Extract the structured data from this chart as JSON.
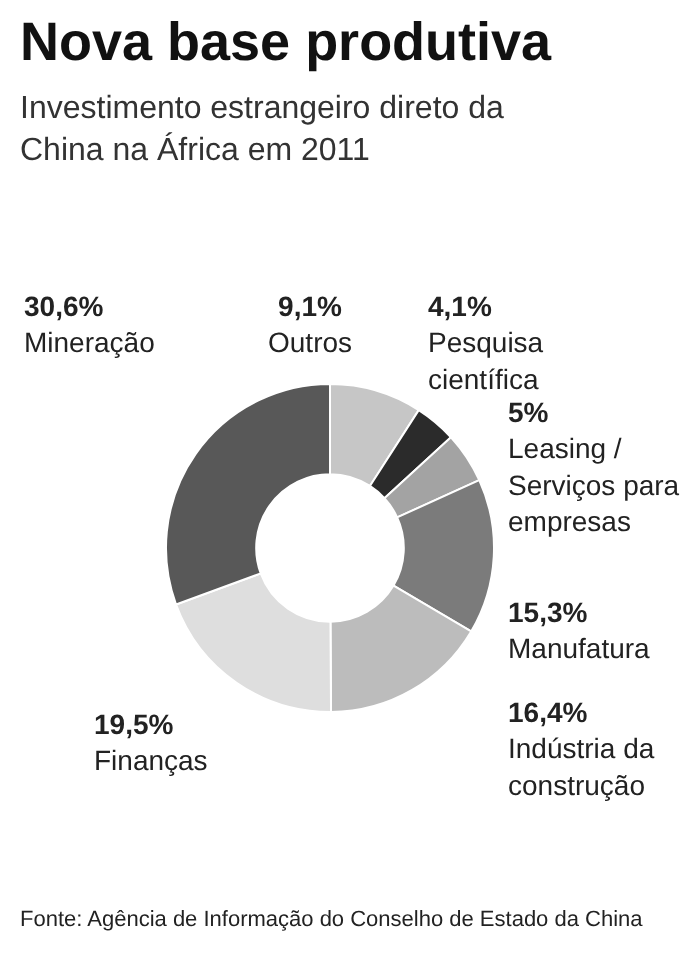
{
  "chart_data": {
    "type": "donut",
    "title": "Nova base produtiva",
    "subtitle": "Investimento estrangeiro direto da China na África em 2011",
    "categories": [
      "Outros",
      "Pesquisa científica",
      "Leasing / Serviços para empresas",
      "Manufatura",
      "Indústria da construção",
      "Finanças",
      "Mineração"
    ],
    "values": [
      9.1,
      4.1,
      5,
      15.3,
      16.4,
      19.5,
      30.6
    ],
    "value_labels": [
      "9,1%",
      "4,1%",
      "5%",
      "15,3%",
      "16,4%",
      "19,5%",
      "30,6%"
    ],
    "colors": [
      "#c6c6c6",
      "#2b2b2b",
      "#a3a3a3",
      "#7b7b7b",
      "#bcbcbc",
      "#dedede",
      "#585858"
    ],
    "annotations": [
      "Fonte: Agência de Informação do Conselho de Estado da China"
    ],
    "legend": false
  }
}
